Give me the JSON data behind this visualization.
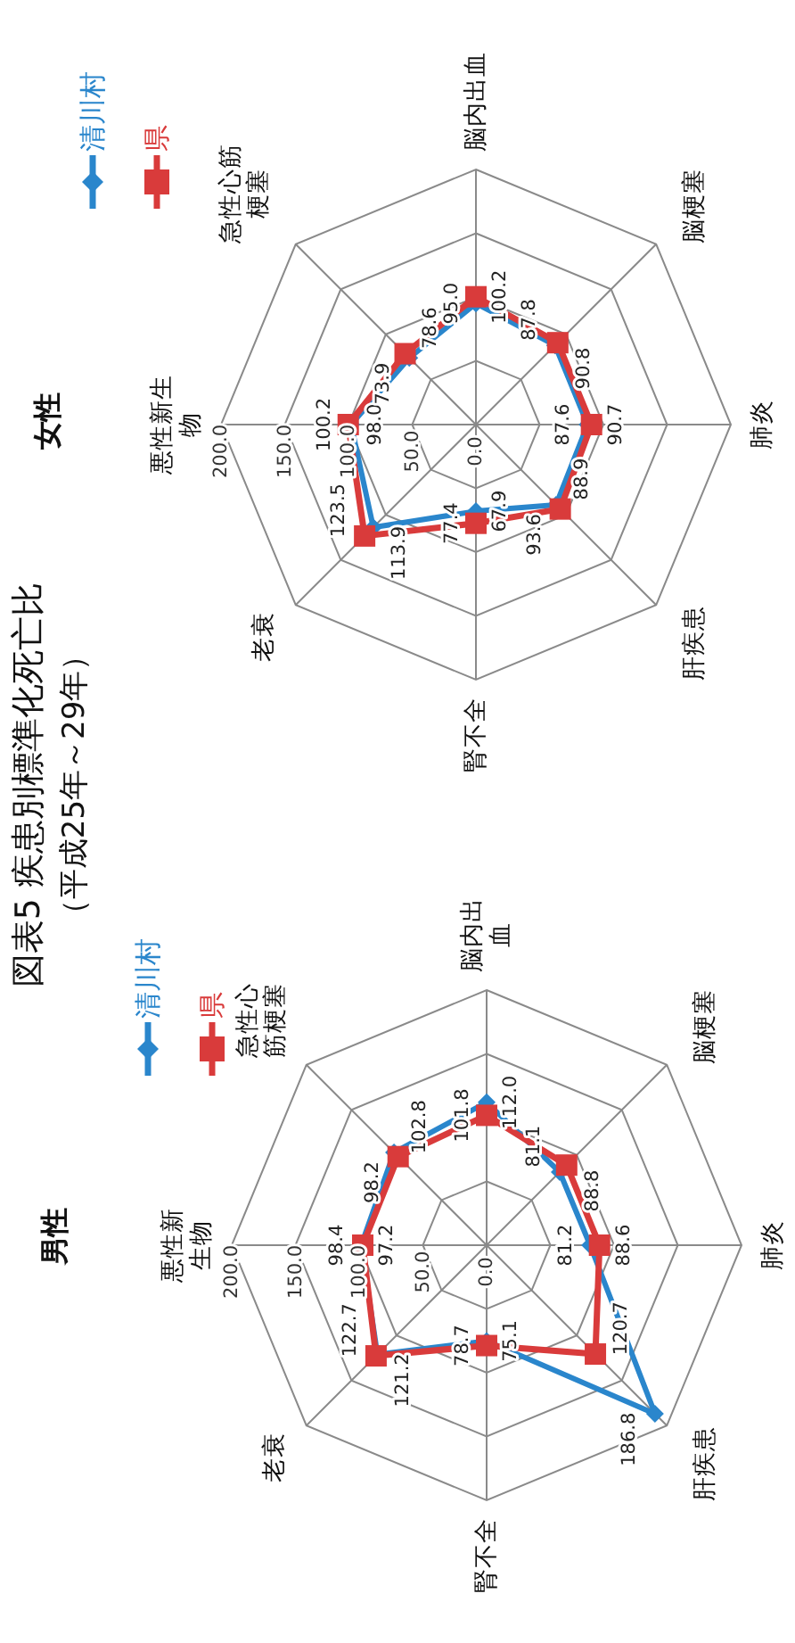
{
  "chart_data": [
    {
      "type": "radar",
      "title": "男性",
      "annotations": [
        "図表5 疾患別標準化死亡比",
        "（平成25年～29年）"
      ],
      "categories": [
        "脳内出血",
        "脳梗塞",
        "肺炎",
        "肝疾患",
        "腎不全",
        "老衰",
        "悪性新生物",
        "急性心筋梗塞"
      ],
      "series": [
        {
          "name": "清川村",
          "color": "#2a86cc",
          "marker": "diamond",
          "values": [
            112.0,
            81.1,
            81.2,
            186.8,
            75.1,
            121.2,
            98.4,
            102.8
          ],
          "value_labels": [
            "112.0",
            "81.1",
            "81.2",
            "186.8",
            "75.1",
            "121.2",
            "98.4",
            "102.8"
          ]
        },
        {
          "name": "県",
          "color": "#d93b3b",
          "marker": "square",
          "values": [
            101.8,
            88.8,
            88.6,
            120.7,
            78.7,
            122.7,
            97.2,
            98.2
          ],
          "value_labels": [
            "101.8",
            "88.8",
            "88.6",
            "120.7",
            "78.7",
            "122.7",
            "97.2",
            "98.2"
          ]
        }
      ],
      "ylim": [
        0,
        200
      ],
      "yticks": [
        {
          "value": 0,
          "label": "0.0"
        },
        {
          "value": 50,
          "label": "50.0"
        },
        {
          "value": 100,
          "label": "100.0"
        },
        {
          "value": 150,
          "label": "150.0"
        },
        {
          "value": 200,
          "label": "200.0"
        }
      ],
      "grid": true,
      "legend": "top left",
      "data_labels": true
    },
    {
      "type": "radar",
      "title": "女性",
      "categories": [
        "脳内出血",
        "脳梗塞",
        "肺炎",
        "肝疾患",
        "腎不全",
        "老衰",
        "悪性新生物",
        "急性心筋梗塞"
      ],
      "series": [
        {
          "name": "清川村",
          "color": "#2a86cc",
          "marker": "diamond",
          "values": [
            95.0,
            87.8,
            87.6,
            88.9,
            67.9,
            113.9,
            98.0,
            73.9
          ],
          "value_labels": [
            "95.0",
            "87.8",
            "87.6",
            "88.9",
            "67.9",
            "113.9",
            "98.0",
            "73.9"
          ]
        },
        {
          "name": "県",
          "color": "#d93b3b",
          "marker": "square",
          "values": [
            100.2,
            90.8,
            90.7,
            93.6,
            77.4,
            123.5,
            100.2,
            78.6
          ],
          "value_labels": [
            "100.2",
            "90.8",
            "90.7",
            "93.6",
            "77.4",
            "123.5",
            "100.2",
            "78.6"
          ]
        }
      ],
      "ylim": [
        0,
        200
      ],
      "yticks": [
        {
          "value": 0,
          "label": "0.0"
        },
        {
          "value": 50,
          "label": "50.0"
        },
        {
          "value": 100,
          "label": "100.0"
        },
        {
          "value": 150,
          "label": "150.0"
        },
        {
          "value": 200,
          "label": "200.0"
        }
      ],
      "grid": true,
      "legend": "top left",
      "data_labels": true
    }
  ]
}
